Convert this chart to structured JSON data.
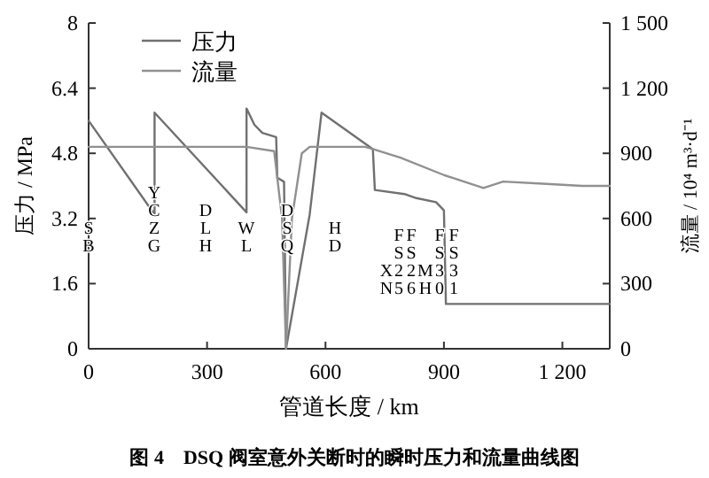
{
  "chart_data": {
    "type": "line",
    "xlabel": "管道长度 / km",
    "ylabel": "压力 / MPa",
    "y2label": "流量 / 10⁴ m³·d⁻¹",
    "xlim": [
      0,
      1320
    ],
    "xticks": [
      0,
      300,
      600,
      900,
      {
        "value": 1200,
        "label": "1 200"
      }
    ],
    "ylim": [
      0,
      8
    ],
    "yticks": [
      0,
      1.6,
      3.2,
      4.8,
      6.4,
      8.0
    ],
    "y2lim": [
      0,
      1500
    ],
    "y2ticks": [
      0,
      300,
      600,
      900,
      {
        "value": 1200,
        "label": "1 200"
      },
      {
        "value": 1500,
        "label": "1 500"
      }
    ],
    "legend": "top left",
    "grid": false,
    "series": [
      {
        "name": "压力",
        "color": "#707070",
        "x": [
          0,
          167,
          167,
          400,
          400,
          420,
          440,
          475,
          478,
          495,
          500,
          560,
          590,
          720,
          725,
          800,
          830,
          880,
          900,
          905,
          1320
        ],
        "values": [
          5.6,
          3.3,
          5.8,
          3.35,
          5.9,
          5.5,
          5.3,
          5.2,
          4.2,
          4.1,
          0,
          3.3,
          5.8,
          4.9,
          3.9,
          3.8,
          3.7,
          3.6,
          3.4,
          1.1,
          1.1
        ]
      },
      {
        "name": "流量",
        "color": "#909090",
        "axis": "y2",
        "x": [
          0,
          400,
          470,
          490,
          500,
          515,
          540,
          560,
          700,
          720,
          790,
          900,
          1000,
          1050,
          1150,
          1250,
          1320
        ],
        "values": [
          930,
          930,
          910,
          600,
          0,
          600,
          900,
          930,
          930,
          920,
          880,
          800,
          740,
          770,
          760,
          750,
          750
        ]
      }
    ],
    "annotations": [
      "SB",
      "YCZG",
      "DLH",
      "WL",
      "DSQ",
      "HD",
      "XN",
      "FS25",
      "FS26",
      "MH",
      "FS30",
      "FS31",
      "图 4　DSQ 阀室意外关断时的瞬时压力和流量曲线图"
    ]
  }
}
